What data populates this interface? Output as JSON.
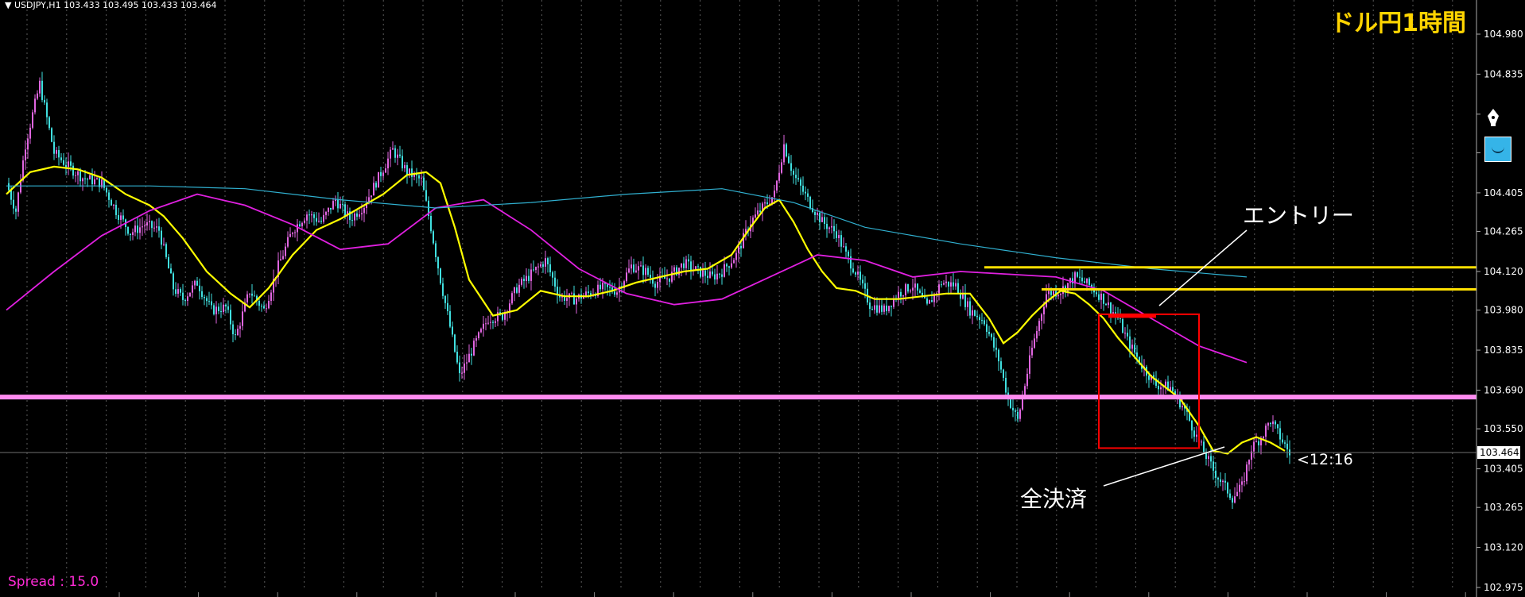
{
  "header": {
    "symbol_info": "▼ USDJPY,H1  103.433 103.495 103.433 103.464"
  },
  "title": "ドル円1時間",
  "spread_label": "Spread : 15.0",
  "annotations": {
    "entry": "エントリー",
    "close_all": "全決済",
    "timer": "<12:16"
  },
  "colors": {
    "background": "#000000",
    "candle_bull": "#e066e0",
    "candle_bear": "#40e0e0",
    "ma_short": "#ffff00",
    "ma_mid": "#e020e0",
    "ma_long": "#30b0d0",
    "hline_pink": "#ff8cf0",
    "hline_yellow": "#ffe000",
    "box_red": "#ff0000",
    "title": "#ffd400"
  },
  "icons": [
    "pen-nib-icon",
    "smile-icon"
  ],
  "chart_data": {
    "type": "candlestick",
    "symbol": "USDJPY",
    "timeframe": "H1",
    "y_ticks": [
      104.98,
      104.835,
      104.69,
      104.55,
      104.405,
      104.265,
      104.12,
      103.98,
      103.835,
      103.69,
      103.55,
      103.405,
      103.265,
      103.12,
      102.975
    ],
    "y_tick_labels": [
      "104.980",
      "104.835",
      "",
      "",
      "104.405",
      "104.265",
      "104.120",
      "103.980",
      "103.835",
      "103.690",
      "103.550",
      "103.405",
      "103.265",
      "103.120",
      "102.975"
    ],
    "ylim": [
      102.975,
      104.98
    ],
    "current_price": 103.464,
    "current_price_label": "103.464",
    "bars": 300,
    "close_path": [
      [
        0,
        104.44
      ],
      [
        4,
        104.34
      ],
      [
        8,
        104.58
      ],
      [
        14,
        104.8
      ],
      [
        20,
        104.55
      ],
      [
        26,
        104.5
      ],
      [
        32,
        104.46
      ],
      [
        40,
        104.44
      ],
      [
        46,
        104.34
      ],
      [
        52,
        104.26
      ],
      [
        58,
        104.29
      ],
      [
        64,
        104.27
      ],
      [
        70,
        104.06
      ],
      [
        74,
        104.02
      ],
      [
        80,
        104.08
      ],
      [
        86,
        103.98
      ],
      [
        92,
        103.99
      ],
      [
        96,
        103.88
      ],
      [
        102,
        104.05
      ],
      [
        108,
        103.98
      ],
      [
        114,
        104.14
      ],
      [
        120,
        104.27
      ],
      [
        126,
        104.33
      ],
      [
        132,
        104.3
      ],
      [
        138,
        104.38
      ],
      [
        144,
        104.31
      ],
      [
        150,
        104.36
      ],
      [
        156,
        104.46
      ],
      [
        162,
        104.56
      ],
      [
        168,
        104.48
      ],
      [
        174,
        104.45
      ],
      [
        178,
        104.28
      ],
      [
        182,
        104.09
      ],
      [
        186,
        103.92
      ],
      [
        190,
        103.74
      ],
      [
        196,
        103.85
      ],
      [
        202,
        103.95
      ],
      [
        208,
        103.96
      ],
      [
        214,
        104.06
      ],
      [
        220,
        104.11
      ],
      [
        226,
        104.16
      ],
      [
        232,
        104.03
      ],
      [
        238,
        104.02
      ],
      [
        244,
        104.04
      ],
      [
        250,
        104.06
      ],
      [
        256,
        104.05
      ],
      [
        262,
        104.14
      ],
      [
        268,
        104.12
      ],
      [
        272,
        104.08
      ],
      [
        278,
        104.1
      ],
      [
        284,
        104.15
      ],
      [
        290,
        104.12
      ],
      [
        296,
        104.1
      ],
      [
        300,
        104.12
      ],
      [
        306,
        104.18
      ],
      [
        312,
        104.3
      ],
      [
        318,
        104.36
      ],
      [
        322,
        104.4
      ],
      [
        326,
        104.58
      ],
      [
        330,
        104.47
      ],
      [
        336,
        104.38
      ],
      [
        342,
        104.3
      ],
      [
        348,
        104.26
      ],
      [
        352,
        104.18
      ],
      [
        356,
        104.12
      ],
      [
        362,
        104.0
      ],
      [
        368,
        103.98
      ],
      [
        374,
        104.04
      ],
      [
        380,
        104.07
      ],
      [
        386,
        103.99
      ],
      [
        392,
        104.08
      ],
      [
        398,
        104.07
      ],
      [
        404,
        103.98
      ],
      [
        410,
        103.94
      ],
      [
        416,
        103.8
      ],
      [
        420,
        103.66
      ],
      [
        424,
        103.58
      ],
      [
        430,
        103.84
      ],
      [
        436,
        104.04
      ],
      [
        442,
        104.05
      ],
      [
        448,
        104.1
      ],
      [
        454,
        104.07
      ],
      [
        460,
        104.02
      ],
      [
        466,
        103.95
      ],
      [
        470,
        103.87
      ],
      [
        476,
        103.78
      ],
      [
        482,
        103.71
      ],
      [
        488,
        103.7
      ],
      [
        494,
        103.62
      ],
      [
        500,
        103.5
      ],
      [
        506,
        103.4
      ],
      [
        510,
        103.35
      ],
      [
        514,
        103.3
      ],
      [
        518,
        103.34
      ],
      [
        522,
        103.48
      ],
      [
        526,
        103.52
      ],
      [
        530,
        103.58
      ],
      [
        534,
        103.52
      ],
      [
        538,
        103.46
      ]
    ],
    "moving_averages": [
      {
        "name": "ma_short",
        "points": [
          [
            0,
            104.4
          ],
          [
            10,
            104.48
          ],
          [
            20,
            104.5
          ],
          [
            30,
            104.49
          ],
          [
            40,
            104.46
          ],
          [
            50,
            104.4
          ],
          [
            60,
            104.36
          ],
          [
            66,
            104.32
          ],
          [
            74,
            104.24
          ],
          [
            84,
            104.12
          ],
          [
            94,
            104.04
          ],
          [
            102,
            103.99
          ],
          [
            110,
            104.06
          ],
          [
            120,
            104.18
          ],
          [
            130,
            104.27
          ],
          [
            140,
            104.31
          ],
          [
            150,
            104.36
          ],
          [
            158,
            104.4
          ],
          [
            168,
            104.47
          ],
          [
            176,
            104.48
          ],
          [
            182,
            104.44
          ],
          [
            188,
            104.28
          ],
          [
            194,
            104.09
          ],
          [
            204,
            103.96
          ],
          [
            214,
            103.98
          ],
          [
            224,
            104.05
          ],
          [
            234,
            104.03
          ],
          [
            244,
            104.03
          ],
          [
            254,
            104.05
          ],
          [
            264,
            104.08
          ],
          [
            274,
            104.1
          ],
          [
            284,
            104.12
          ],
          [
            294,
            104.13
          ],
          [
            304,
            104.18
          ],
          [
            312,
            104.28
          ],
          [
            318,
            104.35
          ],
          [
            324,
            104.38
          ],
          [
            330,
            104.3
          ],
          [
            336,
            104.2
          ],
          [
            342,
            104.12
          ],
          [
            348,
            104.06
          ],
          [
            356,
            104.05
          ],
          [
            364,
            104.02
          ],
          [
            374,
            104.02
          ],
          [
            384,
            104.03
          ],
          [
            394,
            104.04
          ],
          [
            404,
            104.04
          ],
          [
            412,
            103.95
          ],
          [
            418,
            103.86
          ],
          [
            424,
            103.9
          ],
          [
            430,
            103.96
          ],
          [
            436,
            104.01
          ],
          [
            442,
            104.05
          ],
          [
            448,
            104.04
          ],
          [
            454,
            104.0
          ],
          [
            460,
            103.95
          ],
          [
            466,
            103.88
          ],
          [
            474,
            103.8
          ],
          [
            480,
            103.74
          ],
          [
            486,
            103.7
          ],
          [
            492,
            103.66
          ],
          [
            500,
            103.56
          ],
          [
            506,
            103.47
          ],
          [
            512,
            103.46
          ],
          [
            518,
            103.5
          ],
          [
            524,
            103.52
          ],
          [
            530,
            103.5
          ],
          [
            536,
            103.47
          ]
        ]
      },
      {
        "name": "ma_mid",
        "points": [
          [
            0,
            103.98
          ],
          [
            20,
            104.12
          ],
          [
            40,
            104.25
          ],
          [
            60,
            104.34
          ],
          [
            80,
            104.4
          ],
          [
            100,
            104.36
          ],
          [
            120,
            104.29
          ],
          [
            140,
            104.2
          ],
          [
            160,
            104.22
          ],
          [
            180,
            104.35
          ],
          [
            200,
            104.38
          ],
          [
            220,
            104.27
          ],
          [
            240,
            104.13
          ],
          [
            260,
            104.04
          ],
          [
            280,
            104.0
          ],
          [
            300,
            104.02
          ],
          [
            320,
            104.1
          ],
          [
            340,
            104.18
          ],
          [
            360,
            104.16
          ],
          [
            380,
            104.1
          ],
          [
            400,
            104.12
          ],
          [
            420,
            104.11
          ],
          [
            440,
            104.1
          ],
          [
            460,
            104.05
          ],
          [
            480,
            103.95
          ],
          [
            500,
            103.85
          ],
          [
            520,
            103.79
          ]
        ]
      },
      {
        "name": "ma_long",
        "points": [
          [
            0,
            104.43
          ],
          [
            60,
            104.43
          ],
          [
            100,
            104.42
          ],
          [
            140,
            104.38
          ],
          [
            180,
            104.35
          ],
          [
            220,
            104.37
          ],
          [
            260,
            104.4
          ],
          [
            300,
            104.42
          ],
          [
            330,
            104.37
          ],
          [
            360,
            104.28
          ],
          [
            400,
            104.22
          ],
          [
            440,
            104.17
          ],
          [
            480,
            104.13
          ],
          [
            520,
            104.1
          ]
        ]
      }
    ],
    "horizontal_lines": [
      {
        "name": "hline_pink",
        "price": 103.665
      },
      {
        "name": "hline_yellow_upper",
        "price": 104.135,
        "from_bar": 410
      },
      {
        "name": "hline_yellow_lower",
        "price": 104.055,
        "from_bar": 434
      }
    ],
    "rectangle": {
      "bar_from": 458,
      "bar_to": 500,
      "price_top": 103.965,
      "price_bottom": 103.48
    },
    "entry_marker": {
      "bar_from": 462,
      "bar_to": 482,
      "price": 103.965
    }
  }
}
